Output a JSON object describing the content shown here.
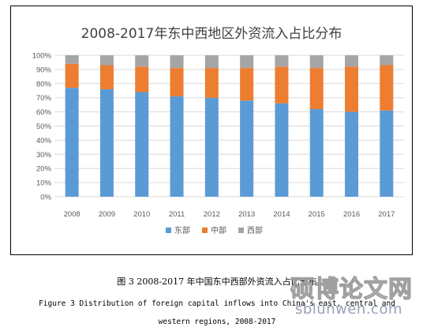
{
  "chart_data": {
    "type": "bar",
    "stacked": true,
    "title": "2008-2017年东中西地区外资流入占比分布",
    "categories": [
      "2008",
      "2009",
      "2010",
      "2011",
      "2012",
      "2013",
      "2014",
      "2015",
      "2016",
      "2017"
    ],
    "series": [
      {
        "name": "东部",
        "color": "#5B9BD5",
        "values": [
          77,
          76,
          74,
          71,
          70,
          68,
          66,
          62,
          60,
          61
        ]
      },
      {
        "name": "中部",
        "color": "#ED7D31",
        "values": [
          17,
          17,
          18,
          20,
          21,
          23,
          26,
          29,
          32,
          32
        ]
      },
      {
        "name": "西部",
        "color": "#A5A5A5",
        "values": [
          6,
          7,
          8,
          9,
          9,
          9,
          8,
          9,
          8,
          7
        ]
      }
    ],
    "y_ticks": [
      "0%",
      "10%",
      "20%",
      "30%",
      "40%",
      "50%",
      "60%",
      "70%",
      "80%",
      "90%",
      "100%"
    ],
    "ylim": [
      0,
      100
    ],
    "grid": true,
    "legend_position": "bottom"
  },
  "caption": {
    "cn": "图 3 2008-2017 年中国东中西部外资流入占比分布",
    "en_line1": "Figure 3  Distribution of foreign capital inflows into China's east, central and",
    "en_line2": "western regions, 2008-2017"
  },
  "watermark": {
    "chars": "硕博论文网",
    "url": "sblunwen.com"
  }
}
